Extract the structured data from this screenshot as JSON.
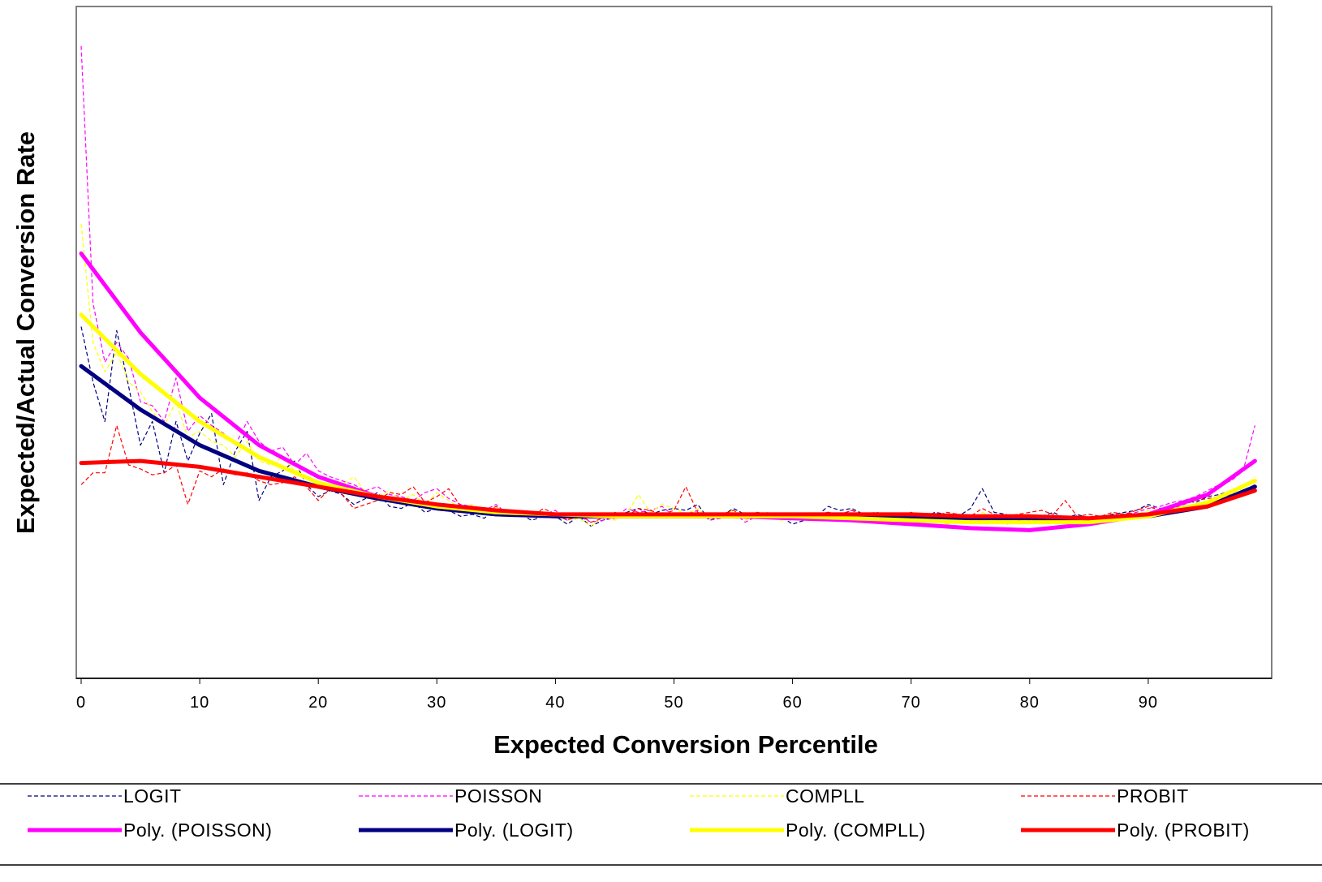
{
  "chart_data": {
    "type": "line",
    "title": "",
    "xlabel": "Expected Conversion Percentile",
    "ylabel": "Expected/Actual Conversion Rate",
    "xlim": [
      0,
      100
    ],
    "ylim": [
      0,
      3.4
    ],
    "grid": false,
    "legend_position": "bottom",
    "x_ticks": [
      "0",
      "10",
      "20",
      "30",
      "40",
      "50",
      "60",
      "70",
      "80",
      "90"
    ],
    "series": [
      {
        "name": "LOGIT",
        "style": "dashed",
        "color": "#000080",
        "x": [
          0,
          1,
          2,
          3,
          4,
          5,
          6,
          7,
          8,
          9,
          10,
          11,
          12,
          13,
          14,
          15,
          16,
          17,
          18,
          19,
          20,
          21,
          22,
          23,
          24,
          25,
          26,
          27,
          28,
          29,
          30,
          31,
          32,
          33,
          34,
          35,
          36,
          37,
          38,
          39,
          40,
          41,
          42,
          43,
          44,
          45,
          46,
          47,
          48,
          49,
          50,
          51,
          52,
          53,
          54,
          55,
          56,
          57,
          58,
          59,
          60,
          61,
          62,
          63,
          64,
          65,
          66,
          67,
          68,
          69,
          70,
          71,
          72,
          73,
          74,
          75,
          76,
          77,
          78,
          79,
          80,
          81,
          82,
          83,
          84,
          85,
          86,
          87,
          88,
          89,
          90,
          91,
          92,
          93,
          94,
          95,
          96,
          97,
          98,
          99
        ],
        "values": [
          1.78,
          1.5,
          1.3,
          1.76,
          1.48,
          1.18,
          1.3,
          1.04,
          1.3,
          1.1,
          1.24,
          1.34,
          0.98,
          1.15,
          1.25,
          0.9,
          1.02,
          1.05,
          1.1,
          0.98,
          0.92,
          0.95,
          0.93,
          0.88,
          0.91,
          0.94,
          0.87,
          0.86,
          0.89,
          0.84,
          0.86,
          0.85,
          0.82,
          0.83,
          0.81,
          0.86,
          0.82,
          0.83,
          0.8,
          0.82,
          0.82,
          0.78,
          0.82,
          0.77,
          0.8,
          0.82,
          0.84,
          0.86,
          0.83,
          0.85,
          0.86,
          0.85,
          0.88,
          0.8,
          0.82,
          0.86,
          0.83,
          0.82,
          0.84,
          0.82,
          0.78,
          0.8,
          0.82,
          0.87,
          0.85,
          0.86,
          0.83,
          0.82,
          0.8,
          0.82,
          0.79,
          0.81,
          0.84,
          0.83,
          0.82,
          0.86,
          0.96,
          0.84,
          0.83,
          0.8,
          0.79,
          0.82,
          0.84,
          0.81,
          0.83,
          0.81,
          0.82,
          0.83,
          0.84,
          0.85,
          0.88,
          0.86,
          0.87,
          0.9,
          0.89,
          0.92,
          0.93,
          0.95,
          0.97,
          1.0
        ]
      },
      {
        "name": "POISSON",
        "style": "dashed",
        "color": "#ff00ff",
        "x": [
          0,
          1,
          2,
          3,
          4,
          5,
          6,
          7,
          8,
          9,
          10,
          11,
          12,
          13,
          14,
          15,
          16,
          17,
          18,
          19,
          20,
          21,
          22,
          23,
          24,
          25,
          26,
          27,
          28,
          29,
          30,
          31,
          32,
          33,
          34,
          35,
          36,
          37,
          38,
          39,
          40,
          41,
          42,
          43,
          44,
          45,
          46,
          47,
          48,
          49,
          50,
          51,
          52,
          53,
          54,
          55,
          56,
          57,
          58,
          59,
          60,
          61,
          62,
          63,
          64,
          65,
          66,
          67,
          68,
          69,
          70,
          71,
          72,
          73,
          74,
          75,
          76,
          77,
          78,
          79,
          80,
          81,
          82,
          83,
          84,
          85,
          86,
          87,
          88,
          89,
          90,
          91,
          92,
          93,
          94,
          95,
          96,
          97,
          98,
          99
        ],
        "values": [
          3.2,
          1.9,
          1.6,
          1.7,
          1.62,
          1.4,
          1.38,
          1.3,
          1.52,
          1.25,
          1.33,
          1.28,
          1.24,
          1.18,
          1.3,
          1.2,
          1.15,
          1.17,
          1.08,
          1.14,
          1.05,
          1.02,
          1.0,
          0.98,
          0.95,
          0.97,
          0.93,
          0.92,
          0.9,
          0.94,
          0.96,
          0.91,
          0.88,
          0.87,
          0.85,
          0.88,
          0.83,
          0.85,
          0.84,
          0.83,
          0.85,
          0.8,
          0.82,
          0.79,
          0.8,
          0.81,
          0.86,
          0.84,
          0.85,
          0.87,
          0.82,
          0.83,
          0.85,
          0.8,
          0.81,
          0.84,
          0.79,
          0.82,
          0.83,
          0.81,
          0.8,
          0.82,
          0.83,
          0.84,
          0.83,
          0.85,
          0.82,
          0.8,
          0.8,
          0.79,
          0.78,
          0.8,
          0.81,
          0.79,
          0.8,
          0.79,
          0.8,
          0.81,
          0.78,
          0.79,
          0.8,
          0.82,
          0.81,
          0.8,
          0.79,
          0.8,
          0.81,
          0.82,
          0.83,
          0.84,
          0.86,
          0.87,
          0.89,
          0.9,
          0.92,
          0.95,
          0.98,
          1.0,
          1.05,
          1.28
        ]
      },
      {
        "name": "COMPLL",
        "style": "dashed",
        "color": "#ffff00",
        "x": [
          0,
          1,
          2,
          3,
          4,
          5,
          6,
          7,
          8,
          9,
          10,
          11,
          12,
          13,
          14,
          15,
          16,
          17,
          18,
          19,
          20,
          21,
          22,
          23,
          24,
          25,
          26,
          27,
          28,
          29,
          30,
          31,
          32,
          33,
          34,
          35,
          36,
          37,
          38,
          39,
          40,
          41,
          42,
          43,
          44,
          45,
          46,
          47,
          48,
          49,
          50,
          51,
          52,
          53,
          54,
          55,
          56,
          57,
          58,
          59,
          60,
          61,
          62,
          63,
          64,
          65,
          66,
          67,
          68,
          69,
          70,
          71,
          72,
          73,
          74,
          75,
          76,
          77,
          78,
          79,
          80,
          81,
          82,
          83,
          84,
          85,
          86,
          87,
          88,
          89,
          90,
          91,
          92,
          93,
          94,
          95,
          96,
          97,
          98,
          99
        ],
        "values": [
          2.3,
          1.7,
          1.55,
          1.65,
          1.5,
          1.45,
          1.35,
          1.28,
          1.4,
          1.22,
          1.25,
          1.2,
          1.18,
          1.12,
          1.2,
          1.1,
          1.08,
          1.12,
          1.05,
          1.06,
          1.02,
          1.0,
          0.98,
          1.02,
          0.94,
          0.92,
          0.95,
          0.9,
          0.93,
          0.88,
          0.94,
          0.9,
          0.86,
          0.88,
          0.84,
          0.87,
          0.82,
          0.84,
          0.83,
          0.82,
          0.84,
          0.8,
          0.81,
          0.77,
          0.82,
          0.8,
          0.83,
          0.93,
          0.84,
          0.88,
          0.86,
          0.83,
          0.86,
          0.81,
          0.82,
          0.85,
          0.8,
          0.83,
          0.84,
          0.8,
          0.81,
          0.82,
          0.84,
          0.82,
          0.83,
          0.82,
          0.81,
          0.8,
          0.79,
          0.8,
          0.8,
          0.79,
          0.8,
          0.78,
          0.79,
          0.8,
          0.84,
          0.81,
          0.8,
          0.78,
          0.79,
          0.8,
          0.8,
          0.81,
          0.79,
          0.8,
          0.8,
          0.81,
          0.82,
          0.83,
          0.85,
          0.84,
          0.86,
          0.87,
          0.88,
          0.9,
          0.92,
          0.94,
          0.96,
          1.02
        ]
      },
      {
        "name": "PROBIT",
        "style": "dashed",
        "color": "#ff0000",
        "x": [
          0,
          1,
          2,
          3,
          4,
          5,
          6,
          7,
          8,
          9,
          10,
          11,
          12,
          13,
          14,
          15,
          16,
          17,
          18,
          19,
          20,
          21,
          22,
          23,
          24,
          25,
          26,
          27,
          28,
          29,
          30,
          31,
          32,
          33,
          34,
          35,
          36,
          37,
          38,
          39,
          40,
          41,
          42,
          43,
          44,
          45,
          46,
          47,
          48,
          49,
          50,
          51,
          52,
          53,
          54,
          55,
          56,
          57,
          58,
          59,
          60,
          61,
          62,
          63,
          64,
          65,
          66,
          67,
          68,
          69,
          70,
          71,
          72,
          73,
          74,
          75,
          76,
          77,
          78,
          79,
          80,
          81,
          82,
          83,
          84,
          85,
          86,
          87,
          88,
          89,
          90,
          91,
          92,
          93,
          94,
          95,
          96,
          97,
          98,
          99
        ],
        "values": [
          0.98,
          1.04,
          1.04,
          1.28,
          1.08,
          1.06,
          1.03,
          1.04,
          1.08,
          0.88,
          1.05,
          1.02,
          1.06,
          1.03,
          1.04,
          1.0,
          0.98,
          0.99,
          1.02,
          0.97,
          0.9,
          0.96,
          0.93,
          0.86,
          0.88,
          0.9,
          0.94,
          0.93,
          0.97,
          0.89,
          0.92,
          0.96,
          0.87,
          0.85,
          0.84,
          0.87,
          0.83,
          0.85,
          0.82,
          0.86,
          0.83,
          0.8,
          0.83,
          0.79,
          0.81,
          0.84,
          0.82,
          0.86,
          0.85,
          0.83,
          0.85,
          0.97,
          0.84,
          0.81,
          0.83,
          0.85,
          0.82,
          0.84,
          0.83,
          0.82,
          0.81,
          0.82,
          0.83,
          0.84,
          0.83,
          0.85,
          0.83,
          0.84,
          0.83,
          0.82,
          0.84,
          0.83,
          0.82,
          0.84,
          0.83,
          0.82,
          0.86,
          0.83,
          0.82,
          0.83,
          0.84,
          0.85,
          0.83,
          0.9,
          0.82,
          0.83,
          0.82,
          0.84,
          0.83,
          0.85,
          0.87,
          0.85,
          0.86,
          0.88,
          0.9,
          0.91,
          0.92,
          0.93,
          0.95,
          0.98
        ]
      },
      {
        "name": "Poly. (POISSON)",
        "style": "solid",
        "color": "#ff00ff",
        "x": [
          0,
          5,
          10,
          15,
          20,
          25,
          30,
          35,
          40,
          45,
          50,
          55,
          60,
          65,
          70,
          75,
          80,
          85,
          90,
          95,
          99
        ],
        "values": [
          2.15,
          1.75,
          1.42,
          1.18,
          1.02,
          0.92,
          0.86,
          0.83,
          0.82,
          0.82,
          0.82,
          0.82,
          0.81,
          0.8,
          0.78,
          0.76,
          0.75,
          0.78,
          0.83,
          0.93,
          1.1
        ]
      },
      {
        "name": "Poly. (LOGIT)",
        "style": "solid",
        "color": "#000080",
        "x": [
          0,
          5,
          10,
          15,
          20,
          25,
          30,
          35,
          40,
          45,
          50,
          55,
          60,
          65,
          70,
          75,
          80,
          85,
          90,
          95,
          99
        ],
        "values": [
          1.58,
          1.36,
          1.18,
          1.05,
          0.97,
          0.91,
          0.86,
          0.83,
          0.82,
          0.82,
          0.82,
          0.82,
          0.82,
          0.82,
          0.81,
          0.81,
          0.81,
          0.8,
          0.82,
          0.87,
          0.97
        ]
      },
      {
        "name": "Poly. (COMPLL)",
        "style": "solid",
        "color": "#ffff00",
        "x": [
          0,
          5,
          10,
          15,
          20,
          25,
          30,
          35,
          40,
          45,
          50,
          55,
          60,
          65,
          70,
          75,
          80,
          85,
          90,
          95,
          99
        ],
        "values": [
          1.84,
          1.54,
          1.3,
          1.12,
          0.99,
          0.92,
          0.87,
          0.84,
          0.83,
          0.82,
          0.82,
          0.82,
          0.82,
          0.81,
          0.8,
          0.79,
          0.79,
          0.79,
          0.82,
          0.89,
          1.0
        ]
      },
      {
        "name": "Poly. (PROBIT)",
        "style": "solid",
        "color": "#ff0000",
        "x": [
          0,
          5,
          10,
          15,
          20,
          25,
          30,
          35,
          40,
          45,
          50,
          55,
          60,
          65,
          70,
          75,
          80,
          85,
          90,
          95,
          99
        ],
        "values": [
          1.09,
          1.1,
          1.07,
          1.02,
          0.97,
          0.92,
          0.88,
          0.85,
          0.83,
          0.83,
          0.83,
          0.83,
          0.83,
          0.83,
          0.83,
          0.82,
          0.82,
          0.81,
          0.83,
          0.87,
          0.95
        ]
      }
    ]
  }
}
